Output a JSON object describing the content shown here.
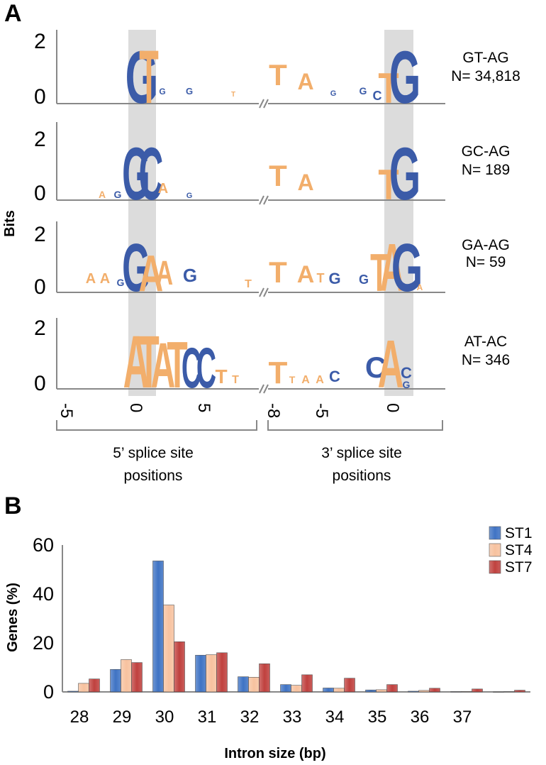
{
  "panel_a": {
    "letter": "A",
    "y_label": "Bits",
    "y_ticks": [
      "2",
      "0"
    ],
    "motifs": [
      {
        "name": "GT-AG",
        "count": "N= 34,818"
      },
      {
        "name": "GC-AG",
        "count": "N= 189"
      },
      {
        "name": "GA-AG",
        "count": "N= 59"
      },
      {
        "name": "AT-AC",
        "count": "N= 346"
      }
    ],
    "pos5_ticks": [
      "-5",
      "0",
      "5"
    ],
    "pos3_ticks": [
      "-8",
      "-5",
      "0"
    ],
    "caption_5": [
      "5’ splice site",
      "positions"
    ],
    "caption_3": [
      "3’ splice site",
      "positions"
    ],
    "colors": {
      "purine_A_T": "#f2ae6b",
      "C_G": "#3b5ba8",
      "highlight": "#dcdcdc"
    }
  },
  "panel_b": {
    "letter": "B",
    "chart_data": {
      "type": "bar",
      "title": "",
      "xlabel": "Intron size (bp)",
      "ylabel": "Genes (%)",
      "ylim": [
        0,
        60
      ],
      "yticks": [
        "60",
        "40",
        "20",
        "0"
      ],
      "categories": [
        "28",
        "29",
        "30",
        "31",
        "32",
        "33",
        "34",
        "35",
        "36",
        "37",
        ""
      ],
      "series": [
        {
          "name": "ST1",
          "color": "#3f73c4",
          "values": [
            0.3,
            9.2,
            53.5,
            15.0,
            6.2,
            3.0,
            1.6,
            0.8,
            0.3,
            0.1,
            0.0
          ]
        },
        {
          "name": "ST4",
          "color": "#f7c29f",
          "values": [
            3.5,
            13.2,
            35.5,
            15.2,
            6.0,
            2.7,
            1.5,
            0.9,
            0.6,
            0.2,
            0.1
          ]
        },
        {
          "name": "ST7",
          "color": "#c0413e",
          "values": [
            5.3,
            12.0,
            20.5,
            16.0,
            11.5,
            7.0,
            5.6,
            3.0,
            1.5,
            1.2,
            0.7
          ]
        }
      ]
    }
  }
}
